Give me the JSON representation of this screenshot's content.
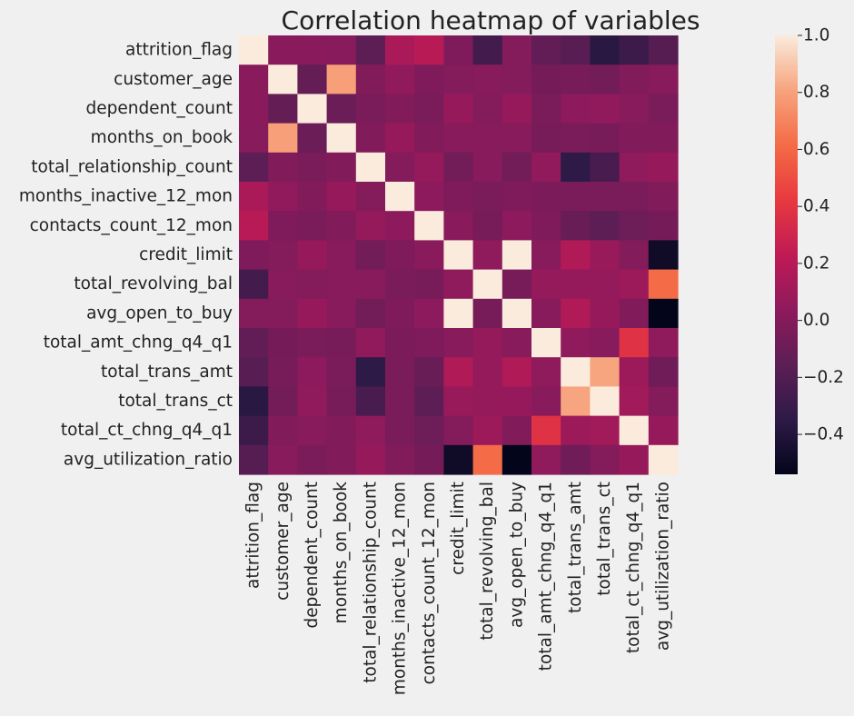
{
  "chart_data": {
    "type": "heatmap",
    "title": "Correlation heatmap of variables",
    "variables": [
      "attrition_flag",
      "customer_age",
      "dependent_count",
      "months_on_book",
      "total_relationship_count",
      "months_inactive_12_mon",
      "contacts_count_12_mon",
      "credit_limit",
      "total_revolving_bal",
      "avg_open_to_buy",
      "total_amt_chng_q4_q1",
      "total_trans_amt",
      "total_trans_ct",
      "total_ct_chng_q4_q1",
      "avg_utilization_ratio"
    ],
    "matrix": [
      [
        1.0,
        0.02,
        0.02,
        0.01,
        -0.15,
        0.15,
        0.2,
        -0.02,
        -0.26,
        0.0,
        -0.13,
        -0.17,
        -0.37,
        -0.29,
        -0.18
      ],
      [
        0.02,
        1.0,
        -0.12,
        0.79,
        -0.01,
        0.05,
        -0.02,
        0.0,
        0.01,
        0.0,
        -0.06,
        -0.05,
        -0.07,
        -0.01,
        0.01
      ],
      [
        0.02,
        -0.12,
        1.0,
        -0.1,
        -0.04,
        -0.01,
        -0.04,
        0.07,
        0.0,
        0.07,
        -0.04,
        0.03,
        0.05,
        0.01,
        -0.04
      ],
      [
        0.01,
        0.79,
        -0.1,
        1.0,
        -0.01,
        0.07,
        -0.01,
        0.01,
        0.01,
        0.01,
        -0.05,
        -0.04,
        -0.05,
        -0.01,
        -0.01
      ],
      [
        -0.15,
        -0.01,
        -0.04,
        -0.01,
        1.0,
        -0.0,
        0.06,
        -0.07,
        0.01,
        -0.07,
        0.05,
        -0.35,
        -0.24,
        0.04,
        0.07
      ],
      [
        0.15,
        0.05,
        -0.01,
        0.07,
        -0.0,
        1.0,
        0.03,
        -0.02,
        -0.04,
        -0.02,
        -0.03,
        -0.04,
        -0.04,
        -0.04,
        -0.01
      ],
      [
        0.2,
        -0.02,
        -0.04,
        -0.01,
        0.06,
        0.03,
        1.0,
        0.02,
        -0.05,
        0.03,
        -0.02,
        -0.11,
        -0.15,
        -0.09,
        -0.06
      ],
      [
        -0.02,
        0.0,
        0.07,
        0.01,
        -0.07,
        -0.02,
        0.02,
        1.0,
        0.04,
        1.0,
        0.01,
        0.17,
        0.08,
        -0.0,
        -0.48
      ],
      [
        -0.26,
        0.01,
        0.0,
        0.01,
        0.01,
        -0.04,
        -0.05,
        0.04,
        1.0,
        -0.05,
        0.06,
        0.06,
        0.06,
        0.09,
        0.62
      ],
      [
        0.0,
        0.0,
        0.07,
        0.01,
        -0.07,
        -0.02,
        0.03,
        1.0,
        -0.05,
        1.0,
        0.01,
        0.17,
        0.07,
        -0.01,
        -0.54
      ],
      [
        -0.13,
        -0.06,
        -0.04,
        -0.05,
        0.05,
        -0.03,
        -0.02,
        0.01,
        0.06,
        0.01,
        1.0,
        0.04,
        0.01,
        0.38,
        0.04
      ],
      [
        -0.17,
        -0.05,
        0.03,
        -0.04,
        -0.35,
        -0.04,
        -0.11,
        0.17,
        0.06,
        0.17,
        0.04,
        1.0,
        0.81,
        0.09,
        -0.08
      ],
      [
        -0.37,
        -0.07,
        0.05,
        -0.05,
        -0.24,
        -0.04,
        -0.15,
        0.08,
        0.06,
        0.07,
        0.01,
        0.81,
        1.0,
        0.11,
        0.0
      ],
      [
        -0.29,
        -0.01,
        0.01,
        -0.01,
        0.04,
        -0.04,
        -0.09,
        -0.0,
        0.09,
        -0.01,
        0.38,
        0.09,
        0.11,
        1.0,
        0.07
      ],
      [
        -0.18,
        0.01,
        -0.04,
        -0.01,
        0.07,
        -0.01,
        -0.06,
        -0.48,
        0.62,
        -0.54,
        0.04,
        -0.08,
        0.0,
        0.07,
        1.0
      ]
    ],
    "vmin": -0.54,
    "vmax": 1.0,
    "colorbar_ticks": [
      1.0,
      0.8,
      0.6,
      0.4,
      0.2,
      0.0,
      -0.2,
      -0.4
    ],
    "colorbar_tick_labels": [
      "1.0",
      "0.8",
      "0.6",
      "0.4",
      "0.2",
      "0.0",
      "−0.2",
      "−0.4"
    ],
    "colormap": [
      "#03051a",
      "#2e1a47",
      "#5c1e55",
      "#8e1a5c",
      "#c01a55",
      "#e8393f",
      "#f46b46",
      "#f6a47e",
      "#faebdd"
    ],
    "background": "#f0f0f0"
  }
}
